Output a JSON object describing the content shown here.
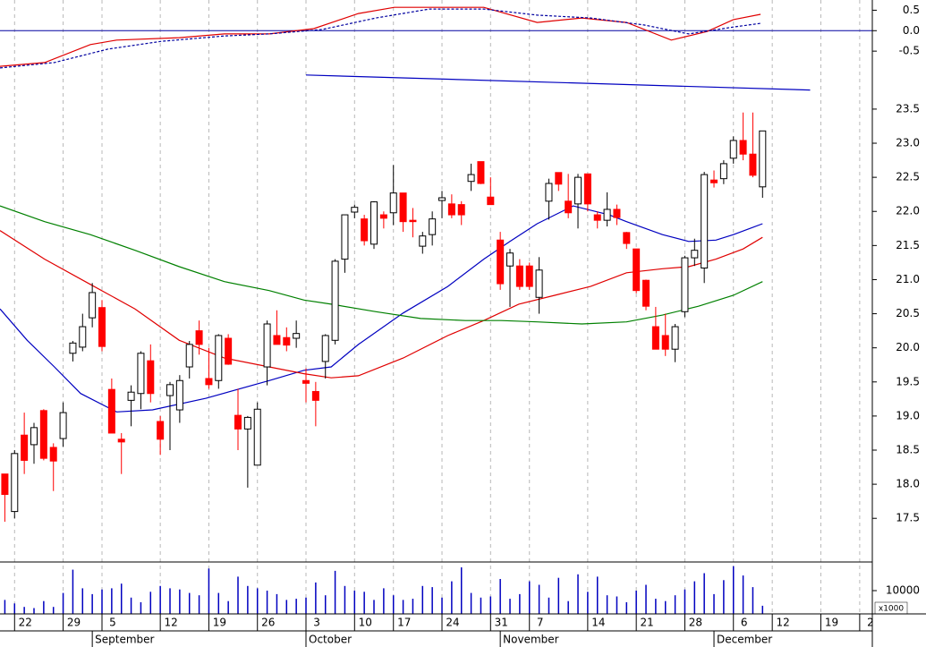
{
  "chart_data": [
    {
      "type": "line",
      "ylim": [
        -1,
        0.75
      ],
      "yticks": [
        {
          "value": 0.5,
          "label": "0.5"
        },
        {
          "value": 0,
          "label": "0.0"
        },
        {
          "value": -0.5,
          "label": "-0.5"
        }
      ],
      "zero_line_color": "#0000a0",
      "lines": [
        {
          "color": "#e00000",
          "style": "solid",
          "x": [
            -0.5,
            4.1,
            8.8,
            11.5,
            17.96,
            22.6,
            27.2,
            31.8,
            36.4,
            40.1,
            45.6,
            49.3,
            54.8,
            59.4,
            64,
            68.6,
            72.3,
            75,
            77.8
          ],
          "values": [
            -0.87,
            -0.78,
            -0.34,
            -0.23,
            -0.17,
            -0.08,
            -0.08,
            0.05,
            0.42,
            0.57,
            0.57,
            0.57,
            0.2,
            0.31,
            0.2,
            -0.23,
            -0.02,
            0.27,
            0.4
          ]
        },
        {
          "color": "#0000a0",
          "style": "dashed",
          "x": [
            -0.5,
            5.1,
            10.6,
            16.1,
            22.6,
            27.2,
            32.7,
            38.2,
            43.7,
            49.3,
            54.8,
            60.3,
            65.8,
            70.4,
            75,
            77.8
          ],
          "values": [
            -0.91,
            -0.78,
            -0.45,
            -0.26,
            -0.13,
            -0.08,
            0.03,
            0.31,
            0.53,
            0.53,
            0.38,
            0.31,
            0.14,
            -0.08,
            0.09,
            0.18
          ]
        }
      ]
    },
    {
      "type": "candlestick",
      "ylim": [
        16.86,
        24.05
      ],
      "yticks": [
        17.5,
        {
          "value": 18,
          "label": "18.0"
        },
        18.5,
        {
          "value": 19,
          "label": "19.0"
        },
        19.5,
        {
          "value": 20,
          "label": "20.0"
        },
        20.5,
        {
          "value": 21,
          "label": "21.0"
        },
        21.5,
        {
          "value": 22,
          "label": "22.0"
        },
        22.5,
        {
          "value": 23,
          "label": "23.0"
        },
        23.5
      ],
      "up_color": "#ffffff",
      "down_color": "#ff0000",
      "edge_color": "#000000",
      "open": [
        18.15,
        17.6,
        18.72,
        18.58,
        19.08,
        18.54,
        18.67,
        19.92,
        20.01,
        20.44,
        20.59,
        19.39,
        18.66,
        19.23,
        19.33,
        19.81,
        18.92,
        19.3,
        19.09,
        19.72,
        20.25,
        19.55,
        19.52,
        20.14,
        19.01,
        18.81,
        18.28,
        19.72,
        20.18,
        20.15,
        20.14,
        19.52,
        19.36,
        19.8,
        20.11,
        21.3,
        21.99,
        21.89,
        21.52,
        21.95,
        21.98,
        22.27,
        21.87,
        21.49,
        21.66,
        22.16,
        22.11,
        22.1,
        22.44,
        22.73,
        22.21,
        21.58,
        21.2,
        21.2,
        21.2,
        20.74,
        22.15,
        22.57,
        22.15,
        22.11,
        22.55,
        21.95,
        21.87,
        22.03,
        21.69,
        21.45,
        20.99,
        20.31,
        20.18,
        19.98,
        20.53,
        21.32,
        21.17,
        22.46,
        22.48,
        22.78,
        23.04,
        22.84,
        22.36
      ],
      "high": [
        18.15,
        18.5,
        19.05,
        18.9,
        19.1,
        18.6,
        19.2,
        20.1,
        20.5,
        20.95,
        20.7,
        19.55,
        18.75,
        19.45,
        19.95,
        20.05,
        19.0,
        19.5,
        19.6,
        20.1,
        20.4,
        20.0,
        20.2,
        20.2,
        19.4,
        19.0,
        19.2,
        20.4,
        20.55,
        20.3,
        20.4,
        19.7,
        19.5,
        20.2,
        21.3,
        21.95,
        22.1,
        21.95,
        22.15,
        22.0,
        22.68,
        22.27,
        22.05,
        21.7,
        22.0,
        22.3,
        22.25,
        22.15,
        22.7,
        22.73,
        22.5,
        21.7,
        21.45,
        21.3,
        21.25,
        21.33,
        22.48,
        22.57,
        22.55,
        22.55,
        22.55,
        22.0,
        22.28,
        22.1,
        21.7,
        21.45,
        21.0,
        20.6,
        20.5,
        20.35,
        21.35,
        21.6,
        22.58,
        22.6,
        22.75,
        23.1,
        23.45,
        23.45,
        23.18
      ],
      "low": [
        17.45,
        17.5,
        18.15,
        18.3,
        18.35,
        17.9,
        18.55,
        19.8,
        19.95,
        20.3,
        19.95,
        18.75,
        18.15,
        18.85,
        19.1,
        19.2,
        18.43,
        18.5,
        18.9,
        19.55,
        19.9,
        19.4,
        19.4,
        19.75,
        18.5,
        17.95,
        18.28,
        19.45,
        20.05,
        19.95,
        20.0,
        19.2,
        18.85,
        19.55,
        20.05,
        21.1,
        21.9,
        21.5,
        21.45,
        21.75,
        21.8,
        21.7,
        21.62,
        21.38,
        21.5,
        21.9,
        21.9,
        21.8,
        22.3,
        22.4,
        22.1,
        20.85,
        20.6,
        20.85,
        20.85,
        20.5,
        21.88,
        22.3,
        21.9,
        21.75,
        22.0,
        21.75,
        21.78,
        21.8,
        21.45,
        20.8,
        20.55,
        19.98,
        19.88,
        19.79,
        20.45,
        21.2,
        20.95,
        22.35,
        22.4,
        22.7,
        22.75,
        22.5,
        22.2
      ],
      "close": [
        17.85,
        18.45,
        18.35,
        18.83,
        18.38,
        18.34,
        19.05,
        20.07,
        20.31,
        20.81,
        20.02,
        18.75,
        18.62,
        19.35,
        19.92,
        19.33,
        18.66,
        19.46,
        19.52,
        20.05,
        20.05,
        19.46,
        20.18,
        19.76,
        18.81,
        18.98,
        19.1,
        20.35,
        20.05,
        20.04,
        20.21,
        19.48,
        19.23,
        20.18,
        21.27,
        21.95,
        22.06,
        21.57,
        22.14,
        21.9,
        22.27,
        21.85,
        21.85,
        21.64,
        21.89,
        22.2,
        21.95,
        21.95,
        22.54,
        22.41,
        22.1,
        20.94,
        21.39,
        20.9,
        20.9,
        21.14,
        22.41,
        22.4,
        21.98,
        22.5,
        22.11,
        21.87,
        22.03,
        21.91,
        21.53,
        20.84,
        20.61,
        19.98,
        19.98,
        20.31,
        21.32,
        21.43,
        22.54,
        22.42,
        22.7,
        23.04,
        22.84,
        22.53,
        23.18
      ],
      "lines": [
        {
          "color": "#0000c0",
          "x": [
            -0.5,
            2.3,
            5.1,
            7.8,
            11.5,
            15.2,
            20.7,
            27.2,
            30.8,
            33.6,
            36.4,
            41,
            45.6,
            49.3,
            52,
            54.8,
            58.5,
            62.2,
            64,
            67.7,
            70.4,
            73.2,
            75,
            78
          ],
          "values": [
            20.57,
            20.11,
            19.72,
            19.33,
            19.06,
            19.09,
            19.26,
            19.52,
            19.67,
            19.72,
            20.05,
            20.51,
            20.9,
            21.3,
            21.56,
            21.82,
            22.08,
            21.95,
            21.85,
            21.66,
            21.56,
            21.58,
            21.66,
            21.82
          ]
        },
        {
          "color": "#e00000",
          "x": [
            -0.5,
            4.1,
            8.8,
            13.4,
            17.96,
            22.6,
            27.2,
            30.8,
            33.6,
            36.4,
            41,
            45.6,
            49.3,
            52.9,
            56.6,
            60.3,
            64,
            67.7,
            70.4,
            73.2,
            76,
            78
          ],
          "values": [
            21.72,
            21.3,
            20.93,
            20.57,
            20.11,
            19.85,
            19.72,
            19.62,
            19.56,
            19.59,
            19.85,
            20.18,
            20.4,
            20.64,
            20.77,
            20.9,
            21.1,
            21.16,
            21.19,
            21.3,
            21.45,
            21.62
          ]
        },
        {
          "color": "#008000",
          "x": [
            -0.5,
            4.1,
            8.8,
            13.4,
            17.96,
            22.6,
            27.2,
            30.8,
            33.6,
            38.2,
            42.8,
            47.4,
            51.1,
            54.8,
            59.4,
            64,
            67.7,
            71.4,
            75,
            78
          ],
          "values": [
            22.08,
            21.85,
            21.66,
            21.43,
            21.19,
            20.97,
            20.84,
            20.7,
            20.64,
            20.53,
            20.43,
            20.4,
            20.4,
            20.38,
            20.35,
            20.38,
            20.48,
            20.61,
            20.77,
            20.97
          ]
        },
        {
          "color": "#0000c0",
          "x": [
            31,
            82.9
          ],
          "values": [
            24.0,
            23.78
          ]
        }
      ]
    },
    {
      "type": "bar",
      "color": "#0000c0",
      "ylim": [
        0,
        22300
      ],
      "yticks": [
        10000
      ],
      "unit_label": "x1000",
      "values": [
        6000,
        4500,
        3000,
        2500,
        5500,
        3000,
        9000,
        19000,
        11000,
        8500,
        10500,
        11000,
        13000,
        7000,
        5000,
        9500,
        12000,
        11000,
        10500,
        9000,
        8000,
        19500,
        9000,
        5500,
        16000,
        12000,
        11000,
        10000,
        8500,
        6000,
        6500,
        7000,
        13500,
        8000,
        18500,
        12000,
        10000,
        9500,
        6000,
        11000,
        8000,
        6000,
        6500,
        12000,
        11500,
        7000,
        14000,
        20000,
        9000,
        7000,
        7500,
        15000,
        6500,
        8500,
        14000,
        12500,
        7000,
        15500,
        5500,
        17000,
        9500,
        16000,
        8000,
        7500,
        5000,
        10000,
        12500,
        6500,
        5500,
        8000,
        10500,
        14000,
        17500,
        8500,
        14500,
        20500,
        16500,
        11500,
        3500
      ],
      "xlim": [
        -0.5,
        89.3
      ],
      "xticks": [
        {
          "value": 1,
          "label": "22"
        },
        {
          "value": 6,
          "label": "29"
        },
        {
          "value": 10,
          "label": "5"
        },
        {
          "value": 16,
          "label": "12"
        },
        {
          "value": 21,
          "label": "19"
        },
        {
          "value": 26,
          "label": "26"
        },
        {
          "value": 31,
          "label": "3"
        },
        {
          "value": 36,
          "label": "10"
        },
        {
          "value": 40,
          "label": "17"
        },
        {
          "value": 45,
          "label": "24"
        },
        {
          "value": 50,
          "label": "31"
        },
        {
          "value": 54,
          "label": "7"
        },
        {
          "value": 60,
          "label": "14"
        },
        {
          "value": 65,
          "label": "21"
        },
        {
          "value": 70,
          "label": "28"
        },
        {
          "value": 75,
          "label": "6"
        },
        {
          "value": 79,
          "label": "12"
        },
        {
          "value": 84,
          "label": "19"
        },
        {
          "value": 88,
          "label": "2"
        }
      ],
      "months": [
        {
          "value": 9,
          "label": "September"
        },
        {
          "value": 31,
          "label": "October"
        },
        {
          "value": 51,
          "label": "November"
        },
        {
          "value": 73,
          "label": "December"
        }
      ]
    }
  ]
}
